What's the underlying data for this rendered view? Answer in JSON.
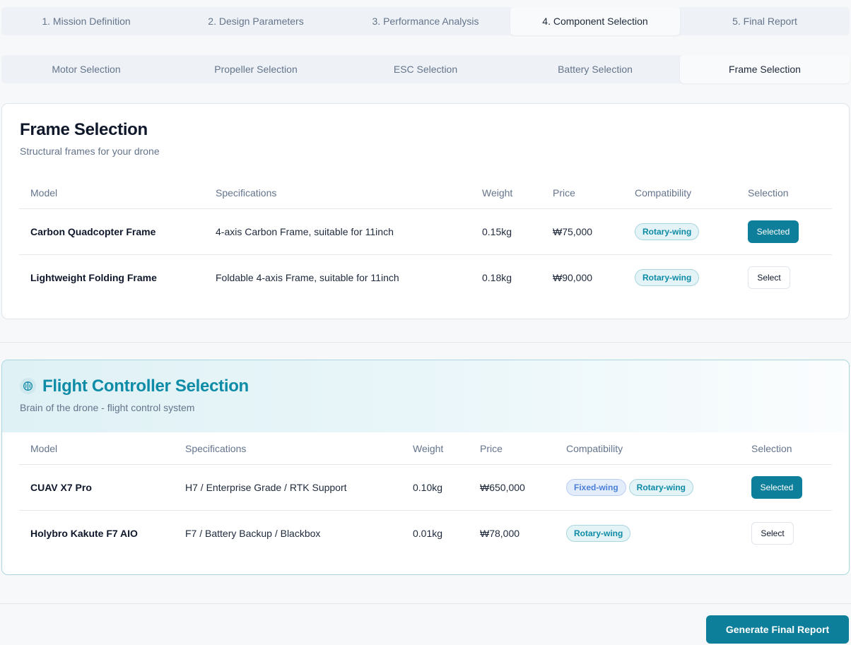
{
  "main_tabs": [
    {
      "label": "1. Mission Definition"
    },
    {
      "label": "2. Design Parameters"
    },
    {
      "label": "3. Performance Analysis"
    },
    {
      "label": "4. Component Selection"
    },
    {
      "label": "5. Final Report"
    }
  ],
  "sub_tabs": [
    {
      "label": "Motor Selection"
    },
    {
      "label": "Propeller Selection"
    },
    {
      "label": "ESC Selection"
    },
    {
      "label": "Battery Selection"
    },
    {
      "label": "Frame Selection"
    }
  ],
  "frame_section": {
    "title": "Frame Selection",
    "subtitle": "Structural frames for your drone",
    "columns": [
      "Model",
      "Specifications",
      "Weight",
      "Price",
      "Compatibility",
      "Selection"
    ],
    "rows": [
      {
        "model": "Carbon Quadcopter Frame",
        "specs": "4-axis Carbon Frame, suitable for 11inch",
        "weight": "0.15kg",
        "price": "₩75,000",
        "compat": [
          "Rotary-wing"
        ],
        "selection": "Selected"
      },
      {
        "model": "Lightweight Folding Frame",
        "specs": "Foldable 4-axis Frame, suitable for 11inch",
        "weight": "0.18kg",
        "price": "₩90,000",
        "compat": [
          "Rotary-wing"
        ],
        "selection": "Select"
      }
    ]
  },
  "fc_section": {
    "icon": "brain-icon",
    "title": "Flight Controller Selection",
    "subtitle": "Brain of the drone - flight control system",
    "columns": [
      "Model",
      "Specifications",
      "Weight",
      "Price",
      "Compatibility",
      "Selection"
    ],
    "rows": [
      {
        "model": "CUAV X7 Pro",
        "specs": "H7 / Enterprise Grade / RTK Support",
        "weight": "0.10kg",
        "price": "₩650,000",
        "compat": [
          "Fixed-wing",
          "Rotary-wing"
        ],
        "selection": "Selected"
      },
      {
        "model": "Holybro Kakute F7 AIO",
        "specs": "F7 / Battery Backup / Blackbox",
        "weight": "0.01kg",
        "price": "₩78,000",
        "compat": [
          "Rotary-wing"
        ],
        "selection": "Select"
      }
    ]
  },
  "footer": {
    "report_button": "Generate Final Report"
  },
  "colors": {
    "accent": "#0e7f9b",
    "accent_text": "#0e8ba6",
    "fixed_wing": "#4a7fd8"
  }
}
